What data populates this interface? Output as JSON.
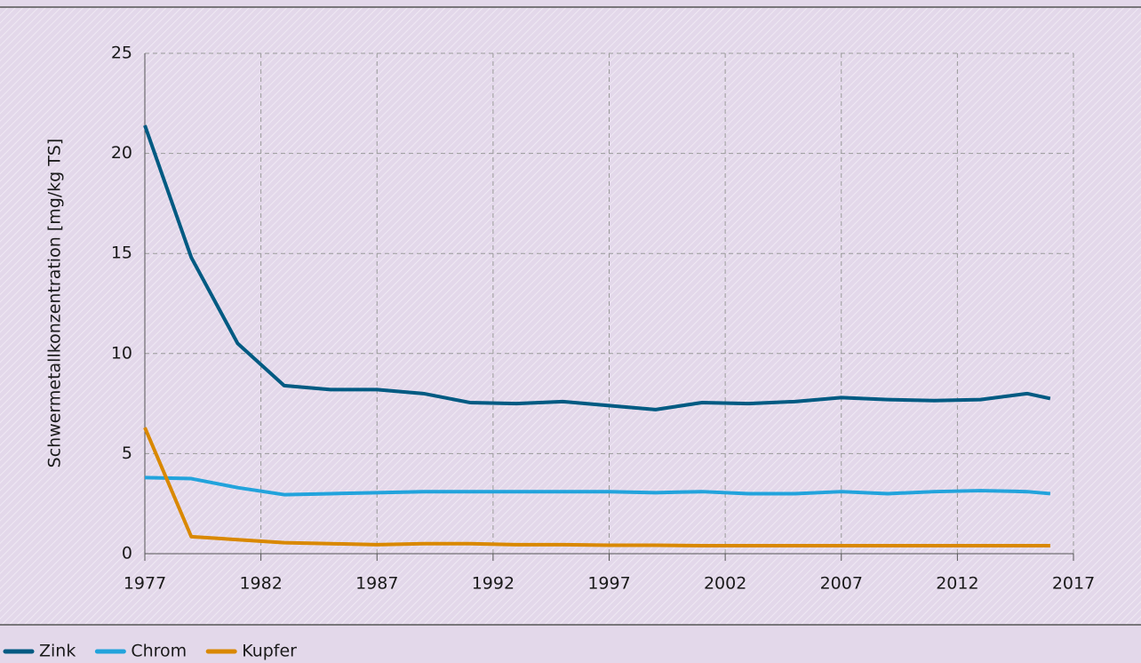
{
  "chart_data": {
    "type": "line",
    "y_label": "Schwermetallkonzentration [mg/kg TS]",
    "x": [
      1977,
      1979,
      1981,
      1983,
      1985,
      1987,
      1989,
      1991,
      1993,
      1995,
      1997,
      1999,
      2001,
      2003,
      2005,
      2007,
      2009,
      2011,
      2013,
      2015,
      2016
    ],
    "series": [
      {
        "name": "Zink",
        "color": "#005a82",
        "values": [
          21.4,
          14.8,
          10.5,
          8.4,
          8.2,
          8.2,
          8.0,
          7.55,
          7.5,
          7.6,
          7.4,
          7.2,
          7.55,
          7.5,
          7.6,
          7.8,
          7.7,
          7.65,
          7.7,
          8.0,
          7.75
        ]
      },
      {
        "name": "Chrom",
        "color": "#22a3dc",
        "values": [
          3.8,
          3.75,
          3.3,
          2.95,
          3.0,
          3.05,
          3.1,
          3.1,
          3.1,
          3.1,
          3.1,
          3.05,
          3.1,
          3.0,
          3.0,
          3.1,
          3.0,
          3.1,
          3.15,
          3.1,
          3.0
        ]
      },
      {
        "name": "Kupfer",
        "color": "#d98800",
        "values": [
          6.3,
          0.85,
          0.7,
          0.55,
          0.5,
          0.45,
          0.5,
          0.5,
          0.45,
          0.45,
          0.42,
          0.42,
          0.4,
          0.4,
          0.4,
          0.4,
          0.4,
          0.4,
          0.4,
          0.4,
          0.4
        ]
      }
    ],
    "xlim": [
      1977,
      2017
    ],
    "xticks": [
      1977,
      1982,
      1987,
      1992,
      1997,
      2002,
      2007,
      2012,
      2017
    ],
    "ylim": [
      0,
      25
    ],
    "yticks": [
      0,
      5,
      10,
      15,
      20,
      25
    ],
    "grid": true
  }
}
